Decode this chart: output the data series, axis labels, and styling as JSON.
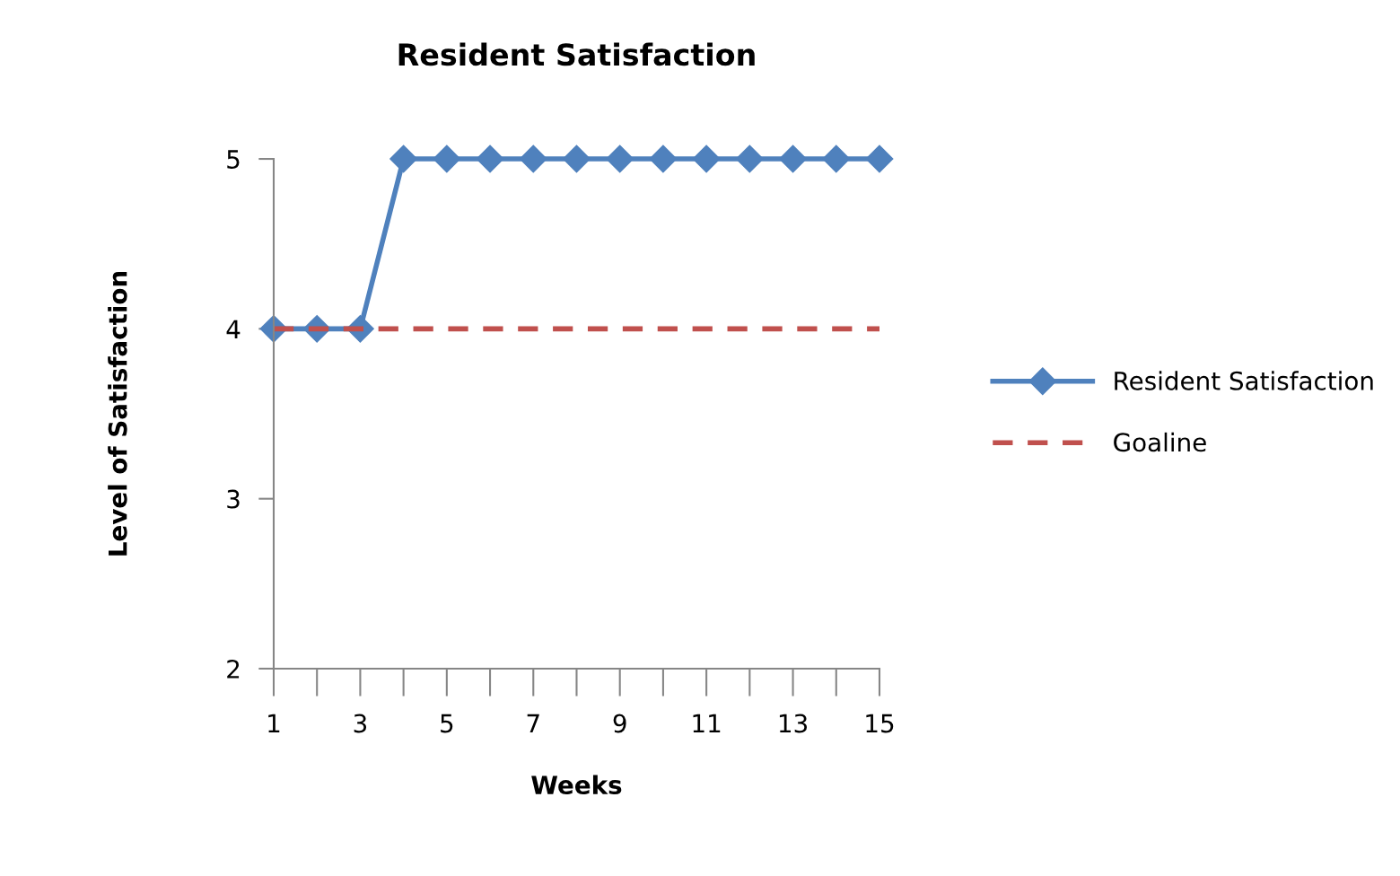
{
  "chart_data": {
    "type": "line",
    "title": "Resident Satisfaction",
    "xlabel": "Weeks",
    "ylabel": "Level of Satisfaction",
    "categories": [
      "1",
      null,
      "3",
      null,
      "5",
      null,
      "7",
      null,
      "9",
      null,
      "11",
      null,
      "13",
      null,
      "15"
    ],
    "series": [
      {
        "name": "Resident Satisfaction",
        "color": "#4f81bd",
        "marker": "diamond",
        "line_style": "solid",
        "values": [
          4,
          4,
          4,
          5,
          5,
          5,
          5,
          5,
          5,
          5,
          5,
          5,
          5,
          5,
          5
        ]
      },
      {
        "name": "Goaline",
        "color": "#c0504d",
        "marker": "none",
        "line_style": "dashed",
        "values": [
          4,
          4,
          4,
          4,
          4,
          4,
          4,
          4,
          4,
          4,
          4,
          4,
          4,
          4,
          4
        ]
      }
    ],
    "ylim": [
      2,
      5
    ],
    "yticks": [
      2,
      3,
      4,
      5
    ],
    "grid": false,
    "legend": "right"
  }
}
